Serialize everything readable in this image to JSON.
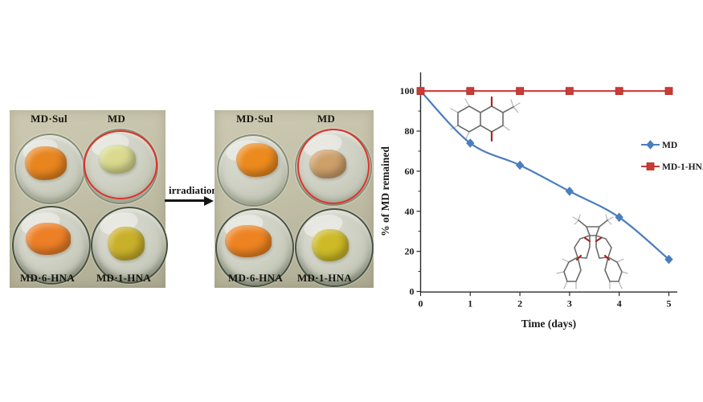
{
  "photos": {
    "before": {
      "top_labels": [
        "MD·Sul",
        "MD"
      ],
      "bottom_labels": [
        "MD·6-HNA",
        "MD·1-HNA"
      ],
      "powders": {
        "md_sul": "#e8851f",
        "md": "#d9da8e",
        "md_6_hna": "#ed7f26",
        "md_1_hna": "#c9b02a"
      },
      "highlight_color": "#e03229"
    },
    "after": {
      "top_labels": [
        "MD·Sul",
        "MD"
      ],
      "bottom_labels": [
        "MD·6-HNA",
        "MD·1-HNA"
      ],
      "powders": {
        "md_sul": "#ec8a1e",
        "md": "#cda06a",
        "md_6_hna": "#ee8322",
        "md_1_hna": "#cdba26"
      },
      "highlight_color": "#e03229"
    }
  },
  "arrow": {
    "label": "irradiation"
  },
  "chart_data": {
    "type": "line",
    "x": [
      0,
      1,
      2,
      3,
      4,
      5
    ],
    "series": [
      {
        "name": "MD",
        "color": "#4a7ebc",
        "marker": "diamond",
        "values": [
          100,
          74,
          63,
          50,
          37,
          16
        ]
      },
      {
        "name": "MD-1-HNA",
        "color": "#cc3b35",
        "marker": "square",
        "values": [
          100,
          100,
          100,
          100,
          100,
          100
        ]
      }
    ],
    "xlabel": "Time (days)",
    "ylabel": "% of MD remained",
    "xlim": [
      0,
      5.15
    ],
    "ylim": [
      0,
      110
    ],
    "xticks": [
      0,
      1,
      2,
      3,
      4,
      5
    ],
    "yticks": [
      0,
      20,
      40,
      60,
      80,
      100
    ],
    "yticks_minor": [
      10,
      30,
      50,
      70,
      90
    ],
    "grid": false,
    "legend_position": "right"
  }
}
